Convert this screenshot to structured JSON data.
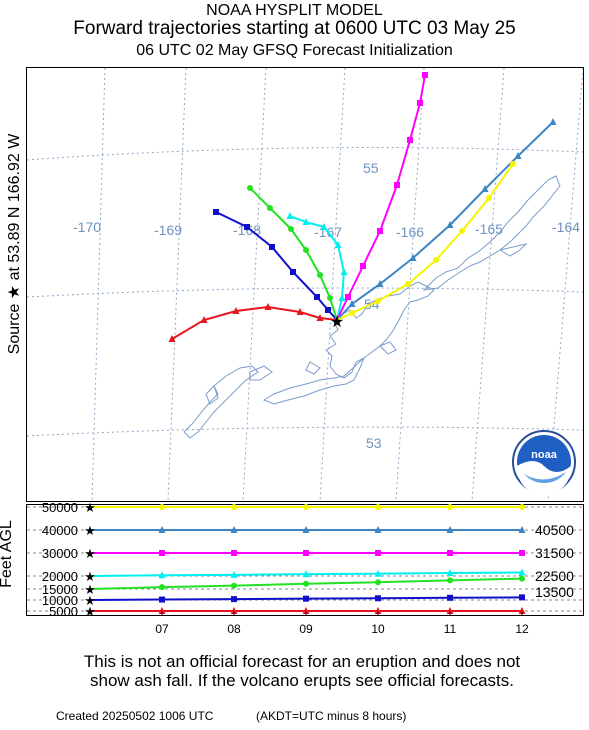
{
  "header": {
    "model": "NOAA HYSPLIT MODEL",
    "title": "Forward trajectories starting at 0600 UTC 03 May 25",
    "subtitle": "06 UTC 02 May    GFSQ  Forecast Initialization"
  },
  "source_label": "Source ★ at    53.89 N  166.92 W",
  "feet_label": "Feet AGL",
  "disclaimer": {
    "line1": "This is not an official forecast for an eruption and does not",
    "line2": "show ash fall. If the volcano erupts see official forecasts."
  },
  "footer": {
    "created": "Created 20250502 1006 UTC",
    "note": "(AKDT=UTC minus 8 hours)"
  },
  "logo": {
    "text": "noaa"
  },
  "colors": {
    "grid": "#8fa8c8",
    "coast": "#7a9ccb",
    "red": "#e8141e",
    "blue": "#1010cc",
    "green": "#22e222",
    "cyan": "#00f0f0",
    "magenta": "#ff00ff",
    "steel": "#3a86c6",
    "yellow": "#f5f500"
  },
  "chart_data": [
    {
      "type": "line",
      "title": "Forward trajectories starting at 0600 UTC 03 May 25",
      "map_labels": {
        "longitudes": [
          "-170",
          "-169",
          "-168",
          "-167",
          "-166",
          "-165",
          "-164"
        ],
        "latitudes": [
          "55",
          "54",
          "53"
        ]
      },
      "source": {
        "lat": 53.89,
        "lon": -166.92
      },
      "series": [
        {
          "color": "red",
          "start_height_ft": 5000
        },
        {
          "color": "blue",
          "start_height_ft": 10000
        },
        {
          "color": "green",
          "start_height_ft": 15000
        },
        {
          "color": "cyan",
          "start_height_ft": 20000
        },
        {
          "color": "magenta",
          "start_height_ft": 30000
        },
        {
          "color": "steel",
          "start_height_ft": 40000
        },
        {
          "color": "yellow",
          "start_height_ft": 50000
        }
      ]
    },
    {
      "type": "line",
      "xlabel": "",
      "ylabel": "Feet AGL",
      "x_ticks": [
        "07",
        "08",
        "09",
        "10",
        "11",
        "12"
      ],
      "y_ticks": [
        "50000",
        "40000",
        "30000",
        "20000",
        "15000",
        "10000",
        "5000"
      ],
      "right_labels": [
        "40500",
        "31500",
        "22500",
        "13500"
      ],
      "ylim": [
        5000,
        50000
      ],
      "series": [
        {
          "color": "yellow",
          "values": [
            50000,
            50000,
            50000,
            50000,
            50000,
            50000,
            50000
          ]
        },
        {
          "color": "steel",
          "values": [
            40000,
            40000,
            40000,
            40000,
            40000,
            40000,
            40000
          ]
        },
        {
          "color": "magenta",
          "values": [
            30000,
            30000,
            30000,
            30000,
            30000,
            30000,
            30000
          ]
        },
        {
          "color": "cyan",
          "values": [
            20000,
            20300,
            20500,
            20800,
            21000,
            21300,
            21500
          ]
        },
        {
          "color": "green",
          "values": [
            15000,
            15700,
            16300,
            17000,
            17600,
            18300,
            19000
          ]
        },
        {
          "color": "blue",
          "values": [
            10000,
            10200,
            10400,
            10600,
            10800,
            11000,
            11200
          ]
        },
        {
          "color": "red",
          "values": [
            5000,
            5000,
            5000,
            5000,
            5000,
            5000,
            5000
          ]
        }
      ]
    }
  ]
}
